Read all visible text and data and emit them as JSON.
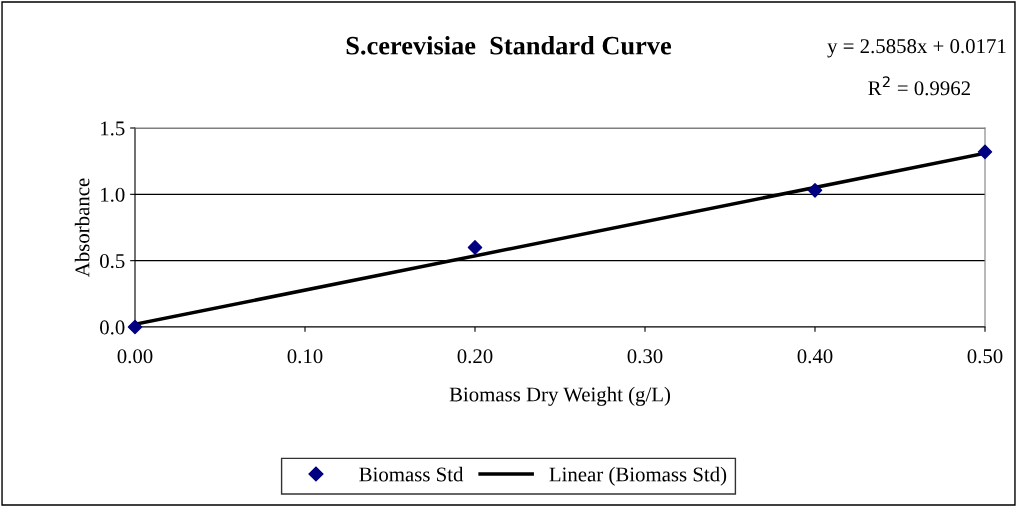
{
  "chart_data": {
    "type": "scatter",
    "title": "S.cerevisiae  Standard Curve",
    "xlabel": "Biomass Dry Weight (g/L)",
    "ylabel": "Absorbance",
    "series": [
      {
        "name": "Biomass Std",
        "color": "#000080",
        "marker": "diamond",
        "x": [
          0.0,
          0.2,
          0.4,
          0.5
        ],
        "values": [
          0.0,
          0.6,
          1.03,
          1.32
        ]
      },
      {
        "name": "Linear (Biomass Std)",
        "type": "line",
        "color": "#000000",
        "marker": "none",
        "line_style": "solid",
        "x": [
          0.0,
          0.5
        ],
        "values": [
          0.02,
          1.31
        ]
      }
    ],
    "xlim": [
      0,
      0.5
    ],
    "xticks": [
      {
        "value": 0,
        "label": "0.00"
      },
      {
        "value": 0.1,
        "label": "0.10"
      },
      {
        "value": 0.2,
        "label": "0.20"
      },
      {
        "value": 0.3,
        "label": "0.30"
      },
      {
        "value": 0.4,
        "label": "0.40"
      },
      {
        "value": 0.5,
        "label": "0.50"
      }
    ],
    "ylim": [
      0,
      1.5
    ],
    "yticks": [
      {
        "value": 0,
        "label": "0.0"
      },
      {
        "value": 0.5,
        "label": "0.5"
      },
      {
        "value": 1.0,
        "label": "1.0"
      },
      {
        "value": 1.5,
        "label": "1.5"
      }
    ],
    "grid": "y",
    "legend": "bottom",
    "annotations": [
      "y = 2.5858x + 0.0171",
      "R$^{2}$ = 0.9962"
    ]
  }
}
